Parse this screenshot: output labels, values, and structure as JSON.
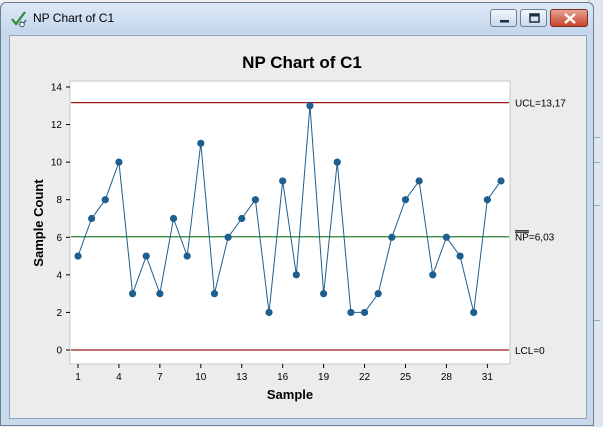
{
  "window": {
    "title": "NP Chart of C1",
    "buttons": {
      "minimize": "minimize",
      "maximize": "maximize",
      "close": "close"
    }
  },
  "colors": {
    "ucl": "#9b1b1b",
    "lcl": "#9b1b1b",
    "center": "#2e7d32",
    "series": "#1f5f8f",
    "plot_bg": "#ffffff",
    "frame_bg": "#ececec"
  },
  "chart_data": {
    "type": "line",
    "title": "NP Chart of C1",
    "xlabel": "Sample",
    "ylabel": "Sample Count",
    "xlim": [
      1,
      32
    ],
    "ylim": [
      0,
      14
    ],
    "x_ticks": [
      1,
      4,
      7,
      10,
      13,
      16,
      19,
      22,
      25,
      28,
      31
    ],
    "y_ticks": [
      0,
      2,
      4,
      6,
      8,
      10,
      12,
      14
    ],
    "x": [
      1,
      2,
      3,
      4,
      5,
      6,
      7,
      8,
      9,
      10,
      11,
      12,
      13,
      14,
      15,
      16,
      17,
      18,
      19,
      20,
      21,
      22,
      23,
      24,
      25,
      26,
      27,
      28,
      29,
      30,
      31,
      32
    ],
    "series": [
      {
        "values": [
          5,
          7,
          8,
          10,
          3,
          5,
          3,
          7,
          5,
          11,
          3,
          6,
          7,
          8,
          2,
          9,
          4,
          13,
          3,
          10,
          2,
          2,
          3,
          6,
          8,
          9,
          4,
          6,
          5,
          2,
          8,
          9
        ]
      }
    ],
    "control_limits": {
      "UCL": {
        "value": 13.17,
        "label": "UCL=13,17"
      },
      "center": {
        "value": 6.03,
        "label_prefix": "NP",
        "label_suffix": "=6,03"
      },
      "LCL": {
        "value": 0,
        "label": "LCL=0"
      }
    },
    "grid": false
  }
}
